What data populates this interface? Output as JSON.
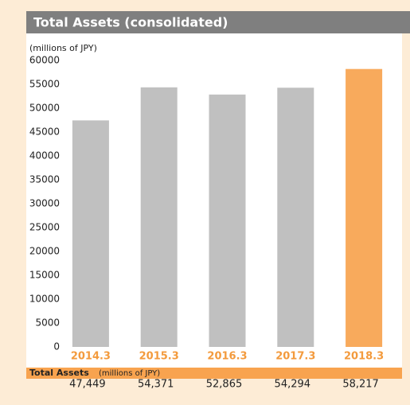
{
  "chart_data": {
    "type": "bar",
    "title": "Total Assets (consolidated)",
    "y_label": "(millions of JPY)",
    "categories": [
      "2014.3",
      "2015.3",
      "2016.3",
      "2017.3",
      "2018.3"
    ],
    "values": [
      47449,
      54371,
      52865,
      54294,
      58217
    ],
    "value_labels": [
      "47,449",
      "54,371",
      "52,865",
      "54,294",
      "58,217"
    ],
    "colors": [
      "#c0c0c0",
      "#c0c0c0",
      "#c0c0c0",
      "#c0c0c0",
      "#f8aa5c"
    ],
    "ylim": [
      0,
      60000
    ],
    "yticks": [
      0,
      5000,
      10000,
      15000,
      20000,
      25000,
      30000,
      35000,
      40000,
      45000,
      50000,
      55000,
      60000
    ],
    "table": {
      "title": "Total Assets",
      "unit": "(millions of JPY)"
    }
  }
}
